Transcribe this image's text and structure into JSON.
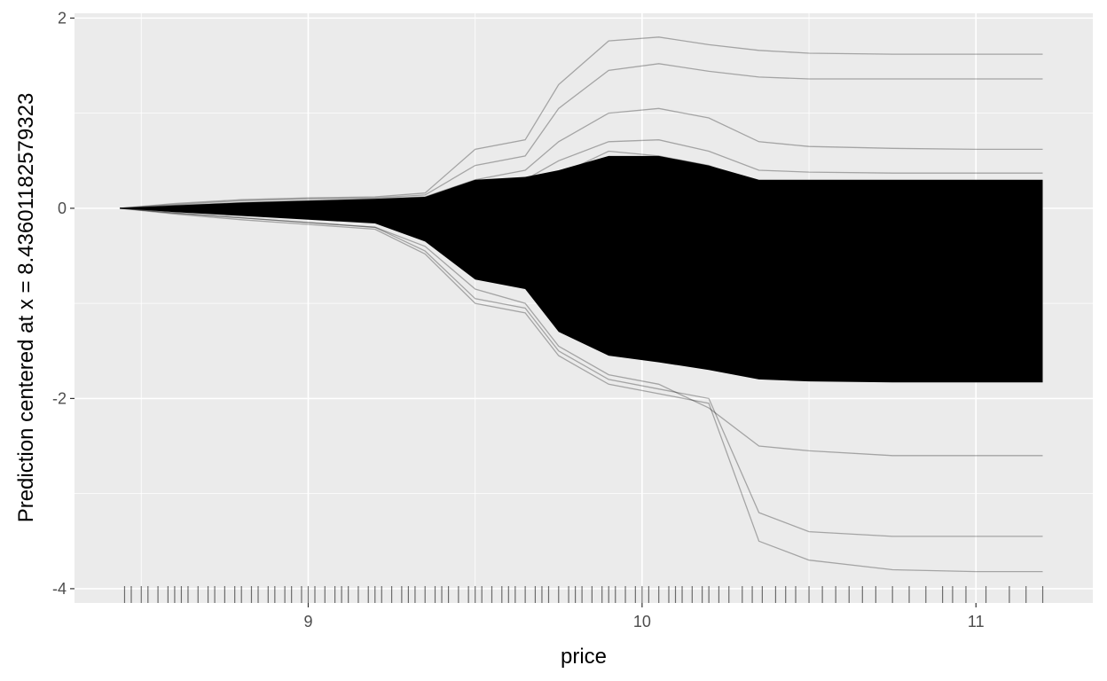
{
  "chart_data": {
    "type": "line",
    "subtype": "centered-ice",
    "title": "",
    "xlabel": "price",
    "ylabel": "Prediction centered at x = 8.43601182579323",
    "xlim": [
      8.3,
      11.35
    ],
    "ylim": [
      -4.15,
      2.05
    ],
    "x_ticks": [
      9,
      10,
      11
    ],
    "y_ticks": [
      -4,
      -2,
      0,
      2
    ],
    "x_tick_labels": [
      "9",
      "10",
      "11"
    ],
    "y_tick_labels": [
      "-4",
      "-2",
      "0",
      "2"
    ],
    "grid": true,
    "legend": "none",
    "x": [
      8.436,
      8.6,
      8.8,
      9.0,
      9.2,
      9.35,
      9.5,
      9.65,
      9.75,
      9.9,
      10.05,
      10.2,
      10.35,
      10.5,
      10.75,
      11.0,
      11.2
    ],
    "series": [
      {
        "values": [
          0,
          0.05,
          0.09,
          0.11,
          0.12,
          0.16,
          0.62,
          0.72,
          1.3,
          1.76,
          1.8,
          1.72,
          1.66,
          1.63,
          1.62,
          1.62,
          1.62
        ]
      },
      {
        "values": [
          0,
          0.04,
          0.08,
          0.1,
          0.11,
          0.14,
          0.45,
          0.55,
          1.05,
          1.45,
          1.52,
          1.44,
          1.38,
          1.36,
          1.36,
          1.36,
          1.36
        ]
      },
      {
        "values": [
          0,
          0.03,
          0.06,
          0.08,
          0.1,
          0.12,
          0.3,
          0.4,
          0.7,
          1.0,
          1.05,
          0.95,
          0.7,
          0.65,
          0.63,
          0.62,
          0.62
        ]
      },
      {
        "values": [
          0,
          0.03,
          0.05,
          0.07,
          0.09,
          0.1,
          0.25,
          0.3,
          0.5,
          0.7,
          0.72,
          0.6,
          0.4,
          0.38,
          0.37,
          0.37,
          0.37
        ]
      },
      {
        "values": [
          0,
          0.02,
          0.04,
          0.05,
          0.06,
          0.08,
          0.2,
          0.25,
          0.35,
          0.6,
          0.55,
          0.45,
          0.25,
          0.2,
          0.18,
          0.18,
          0.18
        ]
      },
      {
        "values": [
          0,
          0.01,
          0.02,
          0.02,
          0.03,
          0.04,
          0.1,
          0.1,
          0.15,
          0.25,
          0.2,
          0.15,
          0.05,
          0.03,
          0.02,
          0.02,
          0.02
        ]
      },
      {
        "values": [
          0,
          -0.01,
          -0.02,
          -0.03,
          -0.05,
          -0.1,
          -0.25,
          -0.3,
          -0.4,
          -0.45,
          -0.5,
          -0.55,
          -0.6,
          -0.62,
          -0.63,
          -0.63,
          -0.63
        ]
      },
      {
        "values": [
          0,
          -0.02,
          -0.04,
          -0.06,
          -0.08,
          -0.15,
          -0.45,
          -0.55,
          -0.8,
          -0.9,
          -0.95,
          -1.0,
          -1.1,
          -1.12,
          -1.13,
          -1.13,
          -1.13
        ]
      },
      {
        "values": [
          0,
          -0.03,
          -0.06,
          -0.09,
          -0.12,
          -0.25,
          -0.65,
          -0.75,
          -1.1,
          -1.3,
          -1.35,
          -1.45,
          -1.6,
          -1.62,
          -1.63,
          -1.63,
          -1.63
        ]
      },
      {
        "values": [
          0,
          -0.05,
          -0.1,
          -0.15,
          -0.2,
          -0.4,
          -0.85,
          -1.0,
          -1.45,
          -1.75,
          -1.85,
          -2.1,
          -2.5,
          -2.55,
          -2.6,
          -2.6,
          -2.6
        ]
      },
      {
        "values": [
          0,
          -0.05,
          -0.1,
          -0.15,
          -0.2,
          -0.45,
          -0.95,
          -1.05,
          -1.5,
          -1.8,
          -1.9,
          -2.0,
          -3.2,
          -3.4,
          -3.45,
          -3.45,
          -3.45
        ]
      },
      {
        "values": [
          0,
          -0.06,
          -0.12,
          -0.17,
          -0.22,
          -0.48,
          -1.0,
          -1.1,
          -1.55,
          -1.85,
          -1.95,
          -2.05,
          -3.5,
          -3.7,
          -3.8,
          -3.82,
          -3.82
        ]
      }
    ],
    "band": {
      "upper": [
        0,
        0.03,
        0.06,
        0.08,
        0.1,
        0.12,
        0.3,
        0.33,
        0.4,
        0.55,
        0.55,
        0.45,
        0.3,
        0.3,
        0.3,
        0.3,
        0.3
      ],
      "lower": [
        0,
        -0.04,
        -0.08,
        -0.12,
        -0.16,
        -0.35,
        -0.75,
        -0.85,
        -1.3,
        -1.55,
        -1.62,
        -1.7,
        -1.8,
        -1.82,
        -1.83,
        -1.83,
        -1.83
      ]
    },
    "rug": [
      8.45,
      8.47,
      8.5,
      8.52,
      8.55,
      8.58,
      8.6,
      8.62,
      8.64,
      8.67,
      8.7,
      8.72,
      8.75,
      8.78,
      8.8,
      8.83,
      8.85,
      8.88,
      8.9,
      8.93,
      8.95,
      8.98,
      9.0,
      9.02,
      9.05,
      9.08,
      9.1,
      9.12,
      9.15,
      9.18,
      9.2,
      9.22,
      9.25,
      9.28,
      9.3,
      9.32,
      9.35,
      9.38,
      9.4,
      9.42,
      9.45,
      9.48,
      9.5,
      9.52,
      9.55,
      9.58,
      9.6,
      9.62,
      9.65,
      9.68,
      9.7,
      9.72,
      9.75,
      9.78,
      9.8,
      9.82,
      9.85,
      9.88,
      9.9,
      9.92,
      9.95,
      9.98,
      10.0,
      10.02,
      10.05,
      10.08,
      10.1,
      10.12,
      10.15,
      10.18,
      10.2,
      10.23,
      10.26,
      10.3,
      10.33,
      10.36,
      10.4,
      10.43,
      10.46,
      10.5,
      10.54,
      10.58,
      10.62,
      10.66,
      10.7,
      10.75,
      10.8,
      10.85,
      10.9,
      10.93,
      10.97,
      11.03,
      11.1,
      11.15,
      11.2
    ]
  }
}
